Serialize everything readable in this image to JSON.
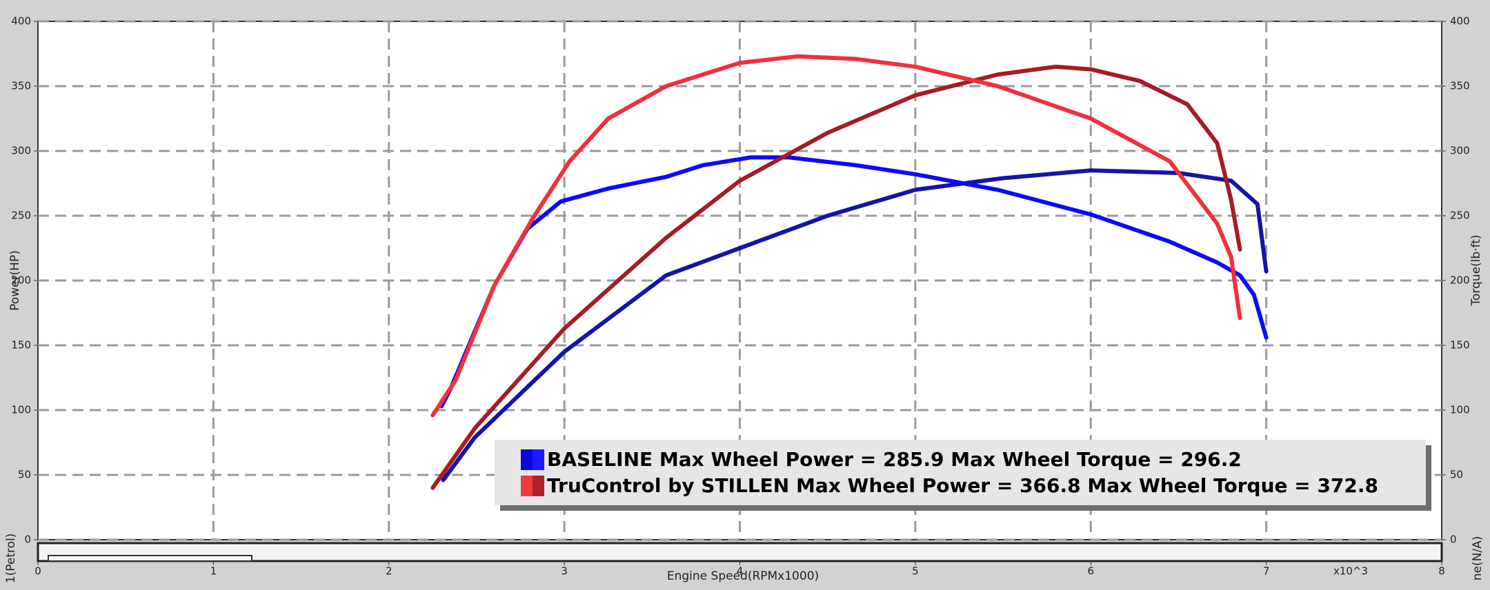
{
  "chart_data": {
    "type": "line",
    "x_label": "Engine Speed(RPMx1000)",
    "x_multiplier": "x10^3",
    "y_label": "Power(HP)",
    "y2_label": "Torque(lb·ft)",
    "bottom_left_label": "1(Petrol)",
    "bottom_right_label": "ne(N/A)",
    "xlim": [
      0,
      8
    ],
    "xticks": [
      0,
      1,
      2,
      3,
      4,
      5,
      6,
      7,
      8
    ],
    "ylim": [
      0,
      400
    ],
    "yticks": [
      0,
      50,
      100,
      150,
      200,
      250,
      300,
      350,
      400
    ],
    "y2lim": [
      0,
      400
    ],
    "y2ticks": [
      0,
      50,
      100,
      150,
      200,
      250,
      300,
      350,
      400
    ],
    "grid": true,
    "series": [
      {
        "color": "#1414a8",
        "x": [
          2.31,
          2.49,
          3.0,
          3.58,
          4.0,
          4.5,
          5.0,
          5.5,
          6.0,
          6.5,
          6.8,
          6.95,
          7.0
        ],
        "values": [
          46,
          79,
          145,
          204,
          225,
          250,
          270,
          279,
          285,
          283,
          277,
          259,
          207
        ]
      },
      {
        "color": "#0a0aff",
        "axis": "y2",
        "x": [
          2.3,
          2.35,
          2.44,
          2.6,
          2.79,
          2.98,
          3.25,
          3.58,
          3.79,
          4.06,
          4.28,
          4.66,
          5.0,
          5.47,
          6.0,
          6.45,
          6.72,
          6.85,
          6.93,
          7.0
        ],
        "values": [
          103,
          116,
          145,
          196,
          240,
          261,
          271,
          280,
          289,
          295,
          295,
          289,
          282,
          270,
          251,
          230,
          214,
          204,
          189,
          156
        ]
      },
      {
        "color": "#a51c24",
        "x": [
          2.25,
          2.49,
          3.0,
          3.58,
          4.0,
          4.5,
          5.0,
          5.47,
          5.8,
          6.0,
          6.28,
          6.55,
          6.72,
          6.8,
          6.85
        ],
        "values": [
          40,
          86,
          163,
          233,
          277,
          314,
          343,
          359,
          365,
          363,
          354,
          336,
          306,
          262,
          224
        ]
      },
      {
        "color": "#f0303a",
        "axis": "y2",
        "x": [
          2.25,
          2.38,
          2.6,
          2.82,
          3.03,
          3.25,
          3.58,
          4.0,
          4.33,
          4.66,
          5.0,
          5.47,
          6.0,
          6.45,
          6.72,
          6.8,
          6.85
        ],
        "values": [
          96,
          123,
          196,
          248,
          292,
          325,
          350,
          368,
          373,
          371,
          365,
          350,
          325,
          292,
          244,
          218,
          171
        ]
      }
    ],
    "legend": [
      {
        "label": "BASELINE Max Wheel Power = 285.9 Max Wheel Torque = 296.2",
        "colors": [
          "#0a0ad8",
          "#1a1aff"
        ]
      },
      {
        "label": "TruControl by STILLEN Max Wheel Power = 366.8 Max Wheel Torque = 372.8",
        "colors": [
          "#f03a3a",
          "#b02028"
        ]
      }
    ]
  }
}
